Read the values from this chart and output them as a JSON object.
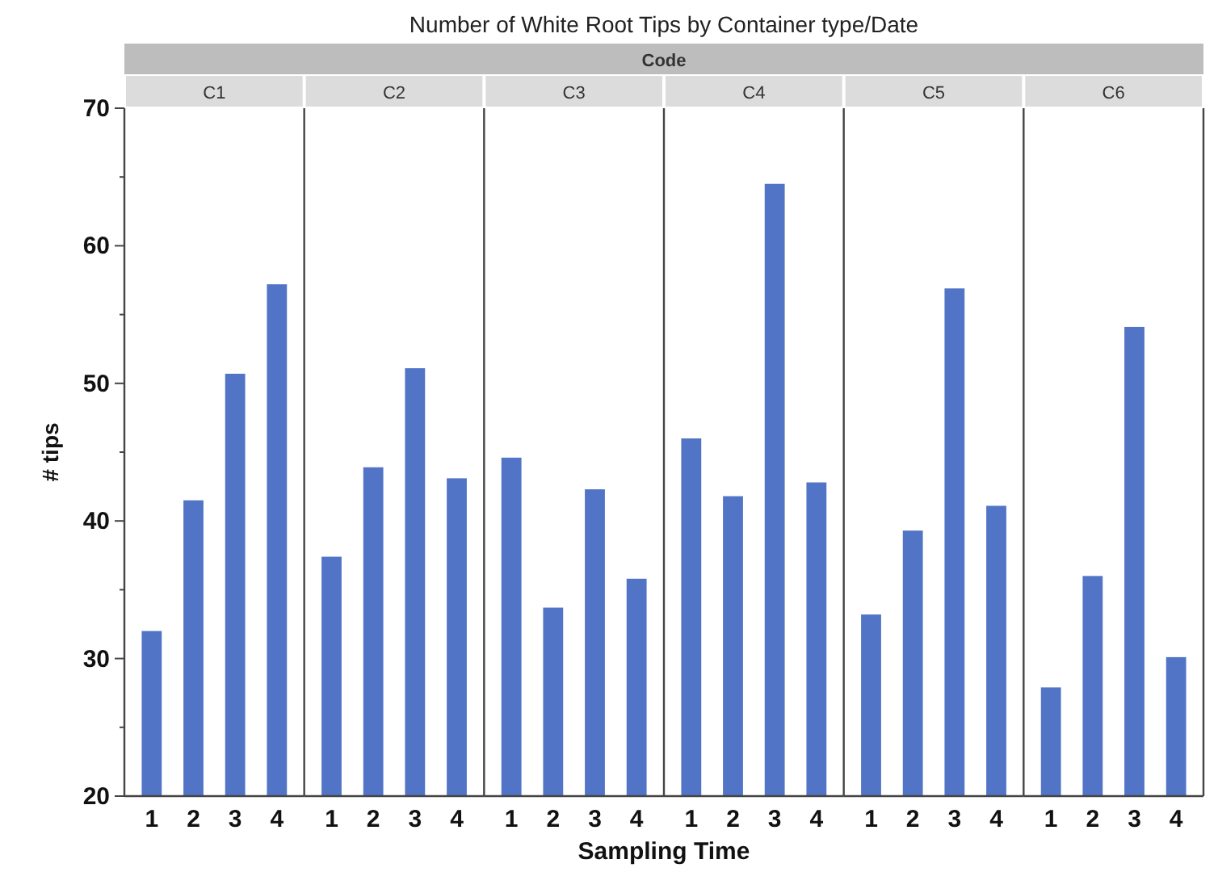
{
  "chart_data": [
    {
      "type": "bar",
      "title": "C1",
      "ylabel": "# tips",
      "annotations": [
        "Number of White Root Tips by Container type/Date",
        "Code",
        "Sampling Time"
      ],
      "categories": [
        "1",
        "2",
        "3",
        "4"
      ],
      "values": [
        32,
        41.5,
        50.7,
        57.2
      ],
      "color": "#5274c6",
      "ylim": [
        20,
        70
      ],
      "yticks": [
        20,
        {
          "value": 25,
          "label": null
        },
        30,
        {
          "value": 35,
          "label": null
        },
        40,
        {
          "value": 45,
          "label": null
        },
        50,
        {
          "value": 55,
          "label": null
        },
        60,
        {
          "value": 65,
          "label": null
        },
        70
      ]
    },
    {
      "type": "bar",
      "title": "C2",
      "categories": [
        "1",
        "2",
        "3",
        "4"
      ],
      "values": [
        37.4,
        43.9,
        51.1,
        43.1
      ],
      "color": "#5274c6",
      "ylim": [
        20,
        70
      ],
      "tick_labels": "x"
    },
    {
      "type": "bar",
      "title": "C3",
      "categories": [
        "1",
        "2",
        "3",
        "4"
      ],
      "values": [
        44.6,
        33.7,
        42.3,
        35.8
      ],
      "color": "#5274c6",
      "ylim": [
        20,
        70
      ],
      "tick_labels": "x"
    },
    {
      "type": "bar",
      "title": "C4",
      "categories": [
        "1",
        "2",
        "3",
        "4"
      ],
      "values": [
        46,
        41.8,
        64.5,
        42.8
      ],
      "color": "#5274c6",
      "ylim": [
        20,
        70
      ],
      "tick_labels": "x"
    },
    {
      "type": "bar",
      "title": "C5",
      "categories": [
        "1",
        "2",
        "3",
        "4"
      ],
      "values": [
        33.2,
        39.3,
        56.9,
        41.1
      ],
      "color": "#5274c6",
      "ylim": [
        20,
        70
      ],
      "tick_labels": "x"
    },
    {
      "type": "bar",
      "title": "C6",
      "categories": [
        "1",
        "2",
        "3",
        "4"
      ],
      "values": [
        27.9,
        36,
        54.1,
        30.1
      ],
      "color": "#5274c6",
      "ylim": [
        20,
        70
      ],
      "tick_labels": "x"
    }
  ]
}
